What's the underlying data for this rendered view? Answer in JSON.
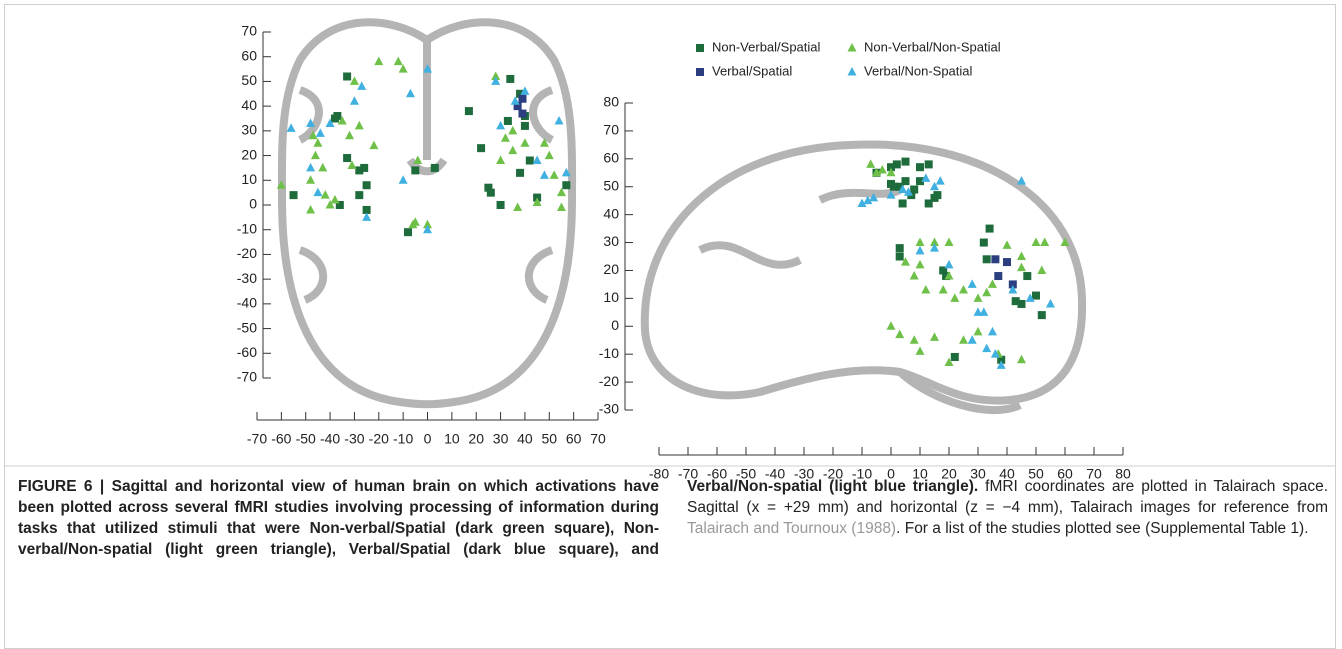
{
  "chart_data": [
    {
      "type": "scatter",
      "xlim": [
        -70,
        70
      ],
      "ylim": [
        -70,
        70
      ],
      "xticks": [
        -70,
        -60,
        -50,
        -40,
        -30,
        -20,
        -10,
        0,
        10,
        20,
        30,
        40,
        50,
        60,
        70
      ],
      "yticks": [
        70,
        60,
        50,
        40,
        30,
        20,
        10,
        0,
        -10,
        -20,
        -30,
        -40,
        -50,
        -60,
        -70
      ],
      "series": [
        {
          "color": "#1e6b3c",
          "marker": "square",
          "x": [
            -33,
            -38,
            -37,
            -33,
            -26,
            -28,
            -36,
            -28,
            -25,
            -25,
            -55,
            -8,
            -5,
            3,
            17,
            22,
            25,
            26,
            30,
            34,
            33,
            38,
            40,
            40,
            38,
            42,
            45,
            57
          ],
          "y": [
            52,
            35,
            36,
            19,
            15,
            14,
            0,
            4,
            8,
            -2,
            4,
            -11,
            14,
            15,
            38,
            23,
            7,
            5,
            0,
            51,
            34,
            45,
            36,
            32,
            13,
            18,
            3,
            8
          ]
        },
        {
          "color": "#2b3f80",
          "marker": "square",
          "x": [
            37,
            39,
            39
          ],
          "y": [
            40,
            37,
            43
          ]
        },
        {
          "color": "#6ec049",
          "marker": "triangle",
          "x": [
            -60,
            -48,
            -46,
            -45,
            -43,
            -42,
            -40,
            -38,
            -31,
            -28,
            -30,
            -32,
            -20,
            -12,
            -10,
            -5,
            -6,
            0,
            28,
            35,
            40,
            48,
            50,
            52,
            55,
            45,
            30,
            32,
            35,
            -35,
            -47,
            -48,
            -22,
            -4,
            37,
            55
          ],
          "y": [
            8,
            -2,
            20,
            25,
            15,
            4,
            0,
            2,
            16,
            32,
            50,
            28,
            58,
            58,
            55,
            -7,
            -8,
            -8,
            52,
            30,
            25,
            25,
            20,
            12,
            5,
            1,
            18,
            27,
            22,
            34,
            28,
            10,
            24,
            18,
            -1,
            -1
          ]
        },
        {
          "color": "#3fb0e0",
          "marker": "triangle",
          "x": [
            -56,
            -48,
            -44,
            -40,
            -30,
            -27,
            -48,
            -45,
            -25,
            -10,
            -7,
            0,
            0,
            28,
            36,
            40,
            45,
            48,
            54,
            57,
            30
          ],
          "y": [
            31,
            33,
            29,
            33,
            42,
            48,
            15,
            5,
            -5,
            10,
            45,
            55,
            -10,
            50,
            42,
            46,
            18,
            12,
            34,
            13,
            32
          ]
        }
      ]
    },
    {
      "type": "scatter",
      "xlim": [
        -80,
        80
      ],
      "ylim": [
        -30,
        80
      ],
      "legend": true,
      "xticks": [
        -80,
        -70,
        -60,
        -50,
        -40,
        -30,
        -20,
        -10,
        0,
        10,
        20,
        30,
        40,
        50,
        60,
        70,
        80
      ],
      "yticks": [
        80,
        70,
        60,
        50,
        40,
        30,
        20,
        10,
        0,
        -10,
        -20,
        -30
      ],
      "series": [
        {
          "name": "Non-Verbal/Spatial",
          "color": "#1e6b3c",
          "marker": "square",
          "x": [
            0,
            2,
            5,
            10,
            13,
            3,
            5,
            7,
            8,
            10,
            13,
            15,
            16,
            4,
            1,
            0,
            3,
            3,
            18,
            19,
            32,
            34,
            33,
            47,
            43,
            45,
            50,
            52,
            38,
            22,
            -5
          ],
          "y": [
            57,
            58,
            59,
            57,
            58,
            50,
            52,
            47,
            49,
            52,
            44,
            46,
            47,
            44,
            50,
            51,
            28,
            25,
            20,
            18,
            30,
            35,
            24,
            18,
            9,
            8,
            11,
            4,
            -12,
            -11,
            55
          ]
        },
        {
          "name": "Verbal/Spatial",
          "color": "#2b3f80",
          "marker": "square",
          "x": [
            37,
            40,
            42,
            36
          ],
          "y": [
            18,
            23,
            15,
            24
          ]
        },
        {
          "name": "Non-Verbal/Non-Spatial",
          "color": "#6ec049",
          "marker": "triangle",
          "x": [
            -7,
            -5,
            -3,
            0,
            10,
            15,
            20,
            5,
            10,
            8,
            12,
            18,
            20,
            22,
            25,
            30,
            33,
            35,
            40,
            45,
            50,
            53,
            60,
            45,
            52,
            0,
            3,
            10,
            15,
            20,
            25,
            30,
            37,
            45,
            8
          ],
          "y": [
            58,
            55,
            56,
            55,
            30,
            30,
            30,
            23,
            22,
            18,
            13,
            13,
            18,
            10,
            13,
            10,
            12,
            15,
            29,
            25,
            30,
            30,
            30,
            21,
            20,
            0,
            -3,
            -9,
            -4,
            -13,
            -5,
            -2,
            -10,
            -12,
            -5
          ]
        },
        {
          "name": "Verbal/Non-Spatial",
          "color": "#3fb0e0",
          "marker": "triangle",
          "x": [
            -10,
            -8,
            -6,
            0,
            4,
            6,
            15,
            12,
            17,
            10,
            15,
            20,
            28,
            30,
            32,
            35,
            33,
            36,
            38,
            45,
            42,
            48,
            55,
            28
          ],
          "y": [
            44,
            45,
            46,
            47,
            49,
            48,
            50,
            53,
            52,
            27,
            28,
            22,
            15,
            5,
            5,
            -2,
            -8,
            -10,
            -14,
            52,
            13,
            10,
            8,
            -5
          ]
        }
      ]
    }
  ],
  "caption": {
    "label": "FIGURE 6 | ",
    "bold": "Sagittal and horizontal view of human brain on which activations have been plotted across several fMRI studies involving processing of information during tasks that utilized stimuli that were Non-verbal/Spatial (dark green square), Non-verbal/Non-spatial (light green triangle), Verbal/Spatial (dark blue square), and Verbal/Non-spatial (light blue triangle).",
    "text1": " fMRI coordinates are plotted in Talairach space. Sagittal (x = +29 mm) and horizontal (z = −4 mm), Talairach images for reference from ",
    "link": "Talairach and Tournoux (1988)",
    "text2": ". For a list of the studies plotted see (Supplemental Table 1)."
  }
}
